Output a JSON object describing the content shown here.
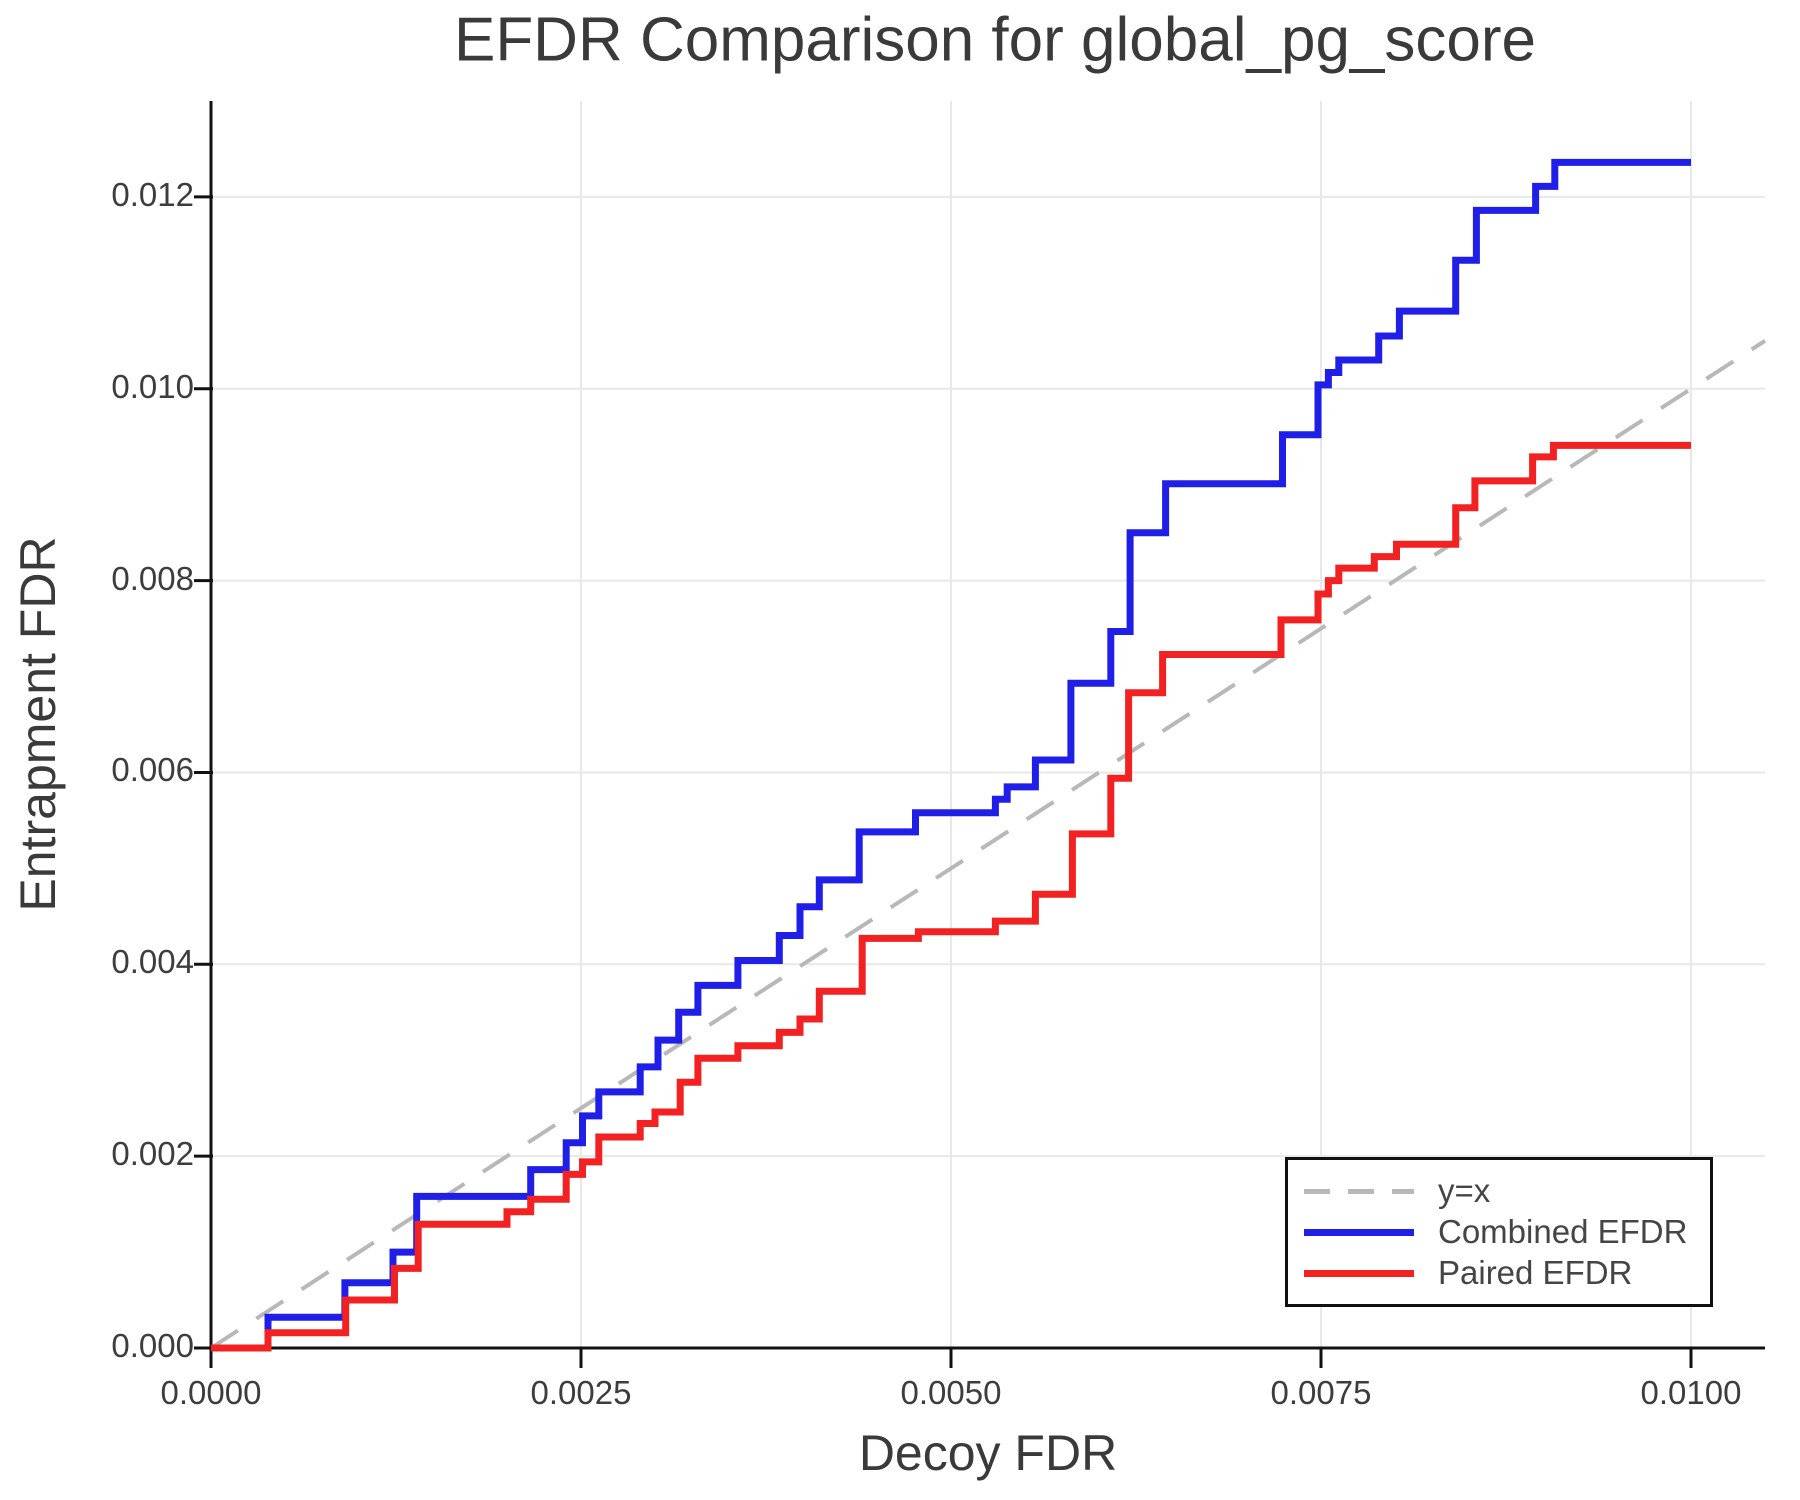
{
  "title": "EFDR Comparison for global_pg_score",
  "colors": {
    "combined": "#1f1fe8",
    "paired": "#f32222",
    "reference": "#b8b8b8",
    "grid": "#e8e8e8",
    "axis": "#111111",
    "text": "#3a3a3a"
  },
  "legend": {
    "entries": [
      {
        "label": "y=x",
        "style": "dashed",
        "color": "#b8b8b8"
      },
      {
        "label": "Combined EFDR",
        "style": "solid",
        "color": "#1f1fe8"
      },
      {
        "label": "Paired EFDR",
        "style": "solid",
        "color": "#f32222"
      }
    ]
  },
  "chart_data": {
    "type": "line",
    "title": "EFDR Comparison for global_pg_score",
    "xlabel": "Decoy FDR",
    "ylabel": "Entrapment FDR",
    "xlim": [
      0,
      0.0105
    ],
    "ylim": [
      0,
      0.013
    ],
    "grid": true,
    "legend_position": "bottom-right",
    "x_ticks": [
      {
        "v": 0.0,
        "label": "0.0000"
      },
      {
        "v": 0.0025,
        "label": "0.0025"
      },
      {
        "v": 0.005,
        "label": "0.0050"
      },
      {
        "v": 0.0075,
        "label": "0.0075"
      },
      {
        "v": 0.01,
        "label": "0.0100"
      }
    ],
    "y_ticks": [
      {
        "v": 0.0,
        "label": "0.000"
      },
      {
        "v": 0.002,
        "label": "0.002"
      },
      {
        "v": 0.004,
        "label": "0.004"
      },
      {
        "v": 0.006,
        "label": "0.006"
      },
      {
        "v": 0.008,
        "label": "0.008"
      },
      {
        "v": 0.01,
        "label": "0.010"
      },
      {
        "v": 0.012,
        "label": "0.012"
      }
    ],
    "reference_line": {
      "name": "y=x",
      "from": [
        0,
        0
      ],
      "to": [
        0.0105,
        0.0105
      ],
      "color": "#b8b8b8",
      "dashed": true
    },
    "series": [
      {
        "name": "Combined EFDR",
        "color": "#1f1fe8",
        "points": [
          [
            0.0,
            0.0
          ],
          [
            0.000385,
            0.0
          ],
          [
            0.000385,
            0.00032
          ],
          [
            0.000905,
            0.00032
          ],
          [
            0.000905,
            0.00068
          ],
          [
            0.00123,
            0.00068
          ],
          [
            0.00123,
            0.001
          ],
          [
            0.00139,
            0.001
          ],
          [
            0.00139,
            0.00158
          ],
          [
            0.00216,
            0.00158
          ],
          [
            0.00216,
            0.00186
          ],
          [
            0.0024,
            0.00186
          ],
          [
            0.0024,
            0.00214
          ],
          [
            0.00251,
            0.00214
          ],
          [
            0.00251,
            0.00242
          ],
          [
            0.00262,
            0.00242
          ],
          [
            0.00262,
            0.00267
          ],
          [
            0.0029,
            0.00267
          ],
          [
            0.0029,
            0.00293
          ],
          [
            0.00302,
            0.00293
          ],
          [
            0.00302,
            0.00321
          ],
          [
            0.00316,
            0.00321
          ],
          [
            0.00316,
            0.0035
          ],
          [
            0.00329,
            0.0035
          ],
          [
            0.00329,
            0.00378
          ],
          [
            0.00356,
            0.00378
          ],
          [
            0.00356,
            0.00404
          ],
          [
            0.00384,
            0.00404
          ],
          [
            0.00384,
            0.0043
          ],
          [
            0.00398,
            0.0043
          ],
          [
            0.00398,
            0.0046
          ],
          [
            0.00411,
            0.0046
          ],
          [
            0.00411,
            0.00488
          ],
          [
            0.00438,
            0.00488
          ],
          [
            0.00438,
            0.00538
          ],
          [
            0.00476,
            0.00538
          ],
          [
            0.00476,
            0.00558
          ],
          [
            0.0053,
            0.00558
          ],
          [
            0.0053,
            0.00572
          ],
          [
            0.00538,
            0.00572
          ],
          [
            0.00538,
            0.00585
          ],
          [
            0.00557,
            0.00585
          ],
          [
            0.00557,
            0.00613
          ],
          [
            0.00581,
            0.00613
          ],
          [
            0.00581,
            0.00693
          ],
          [
            0.00608,
            0.00693
          ],
          [
            0.00608,
            0.00747
          ],
          [
            0.00621,
            0.00747
          ],
          [
            0.00621,
            0.0085
          ],
          [
            0.00645,
            0.0085
          ],
          [
            0.00645,
            0.00901
          ],
          [
            0.00724,
            0.00901
          ],
          [
            0.00724,
            0.00952
          ],
          [
            0.00748,
            0.00952
          ],
          [
            0.00748,
            0.01004
          ],
          [
            0.00755,
            0.01004
          ],
          [
            0.00755,
            0.01017
          ],
          [
            0.00762,
            0.01017
          ],
          [
            0.00762,
            0.0103
          ],
          [
            0.00789,
            0.0103
          ],
          [
            0.00789,
            0.01055
          ],
          [
            0.00803,
            0.01055
          ],
          [
            0.00803,
            0.01081
          ],
          [
            0.00841,
            0.01081
          ],
          [
            0.00841,
            0.01134
          ],
          [
            0.00855,
            0.01134
          ],
          [
            0.00855,
            0.01186
          ],
          [
            0.00895,
            0.01186
          ],
          [
            0.00895,
            0.01211
          ],
          [
            0.00908,
            0.01211
          ],
          [
            0.00908,
            0.01236
          ],
          [
            0.01,
            0.01236
          ]
        ]
      },
      {
        "name": "Paired EFDR",
        "color": "#f32222",
        "points": [
          [
            0.0,
            0.0
          ],
          [
            0.000385,
            0.0
          ],
          [
            0.000385,
            0.00016
          ],
          [
            0.00091,
            0.00016
          ],
          [
            0.00091,
            0.0005
          ],
          [
            0.00124,
            0.0005
          ],
          [
            0.00124,
            0.00083
          ],
          [
            0.0014,
            0.00083
          ],
          [
            0.0014,
            0.00129
          ],
          [
            0.002,
            0.00129
          ],
          [
            0.002,
            0.00142
          ],
          [
            0.00216,
            0.00142
          ],
          [
            0.00216,
            0.00155
          ],
          [
            0.0024,
            0.00155
          ],
          [
            0.0024,
            0.00181
          ],
          [
            0.00251,
            0.00181
          ],
          [
            0.00251,
            0.00194
          ],
          [
            0.00262,
            0.00194
          ],
          [
            0.00262,
            0.0022
          ],
          [
            0.0029,
            0.0022
          ],
          [
            0.0029,
            0.00234
          ],
          [
            0.003,
            0.00234
          ],
          [
            0.003,
            0.00246
          ],
          [
            0.00317,
            0.00246
          ],
          [
            0.00317,
            0.00277
          ],
          [
            0.00329,
            0.00277
          ],
          [
            0.00329,
            0.00302
          ],
          [
            0.00356,
            0.00302
          ],
          [
            0.00356,
            0.00315
          ],
          [
            0.00384,
            0.00315
          ],
          [
            0.00384,
            0.00329
          ],
          [
            0.00398,
            0.00329
          ],
          [
            0.00398,
            0.00343
          ],
          [
            0.00411,
            0.00343
          ],
          [
            0.00411,
            0.00372
          ],
          [
            0.0044,
            0.00372
          ],
          [
            0.0044,
            0.00427
          ],
          [
            0.00478,
            0.00427
          ],
          [
            0.00478,
            0.00434
          ],
          [
            0.0053,
            0.00434
          ],
          [
            0.0053,
            0.00445
          ],
          [
            0.00557,
            0.00445
          ],
          [
            0.00557,
            0.00473
          ],
          [
            0.00582,
            0.00473
          ],
          [
            0.00582,
            0.00536
          ],
          [
            0.00608,
            0.00536
          ],
          [
            0.00608,
            0.00594
          ],
          [
            0.0062,
            0.00594
          ],
          [
            0.0062,
            0.00683
          ],
          [
            0.00643,
            0.00683
          ],
          [
            0.00643,
            0.00723
          ],
          [
            0.00723,
            0.00723
          ],
          [
            0.00723,
            0.00759
          ],
          [
            0.00748,
            0.00759
          ],
          [
            0.00748,
            0.00786
          ],
          [
            0.00755,
            0.00786
          ],
          [
            0.00755,
            0.008
          ],
          [
            0.00762,
            0.008
          ],
          [
            0.00762,
            0.00813
          ],
          [
            0.00786,
            0.00813
          ],
          [
            0.00786,
            0.00825
          ],
          [
            0.00801,
            0.00825
          ],
          [
            0.00801,
            0.00838
          ],
          [
            0.00841,
            0.00838
          ],
          [
            0.00841,
            0.00876
          ],
          [
            0.00854,
            0.00876
          ],
          [
            0.00854,
            0.00904
          ],
          [
            0.00893,
            0.00904
          ],
          [
            0.00893,
            0.00929
          ],
          [
            0.00907,
            0.00929
          ],
          [
            0.00907,
            0.00941
          ],
          [
            0.01,
            0.00941
          ]
        ]
      }
    ]
  }
}
